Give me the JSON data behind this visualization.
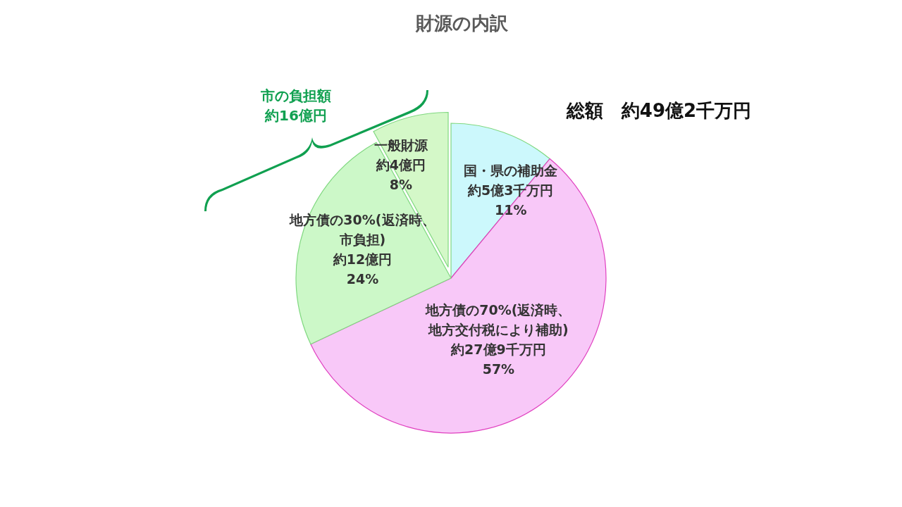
{
  "chart_data": {
    "type": "pie",
    "title": "財源の内訳",
    "categories": [
      "国・県の補助金約5億3千万円",
      "地方債の70%(返済時、地方交付税により補助)約27億9千万円",
      "地方債の30%(返済時、市負担)約12億円",
      "一般財源約4億円"
    ],
    "values": [
      11,
      57,
      24,
      8
    ],
    "colors": [
      "#ccf8fc",
      "#f8c8f8",
      "#ccf8c8",
      "#d4f8c8"
    ],
    "value_labels": [
      "11%",
      "57%",
      "24%",
      "8%"
    ],
    "annotations": [
      "総額　約49億2千万円",
      "市の負担額約16億円"
    ]
  }
}
